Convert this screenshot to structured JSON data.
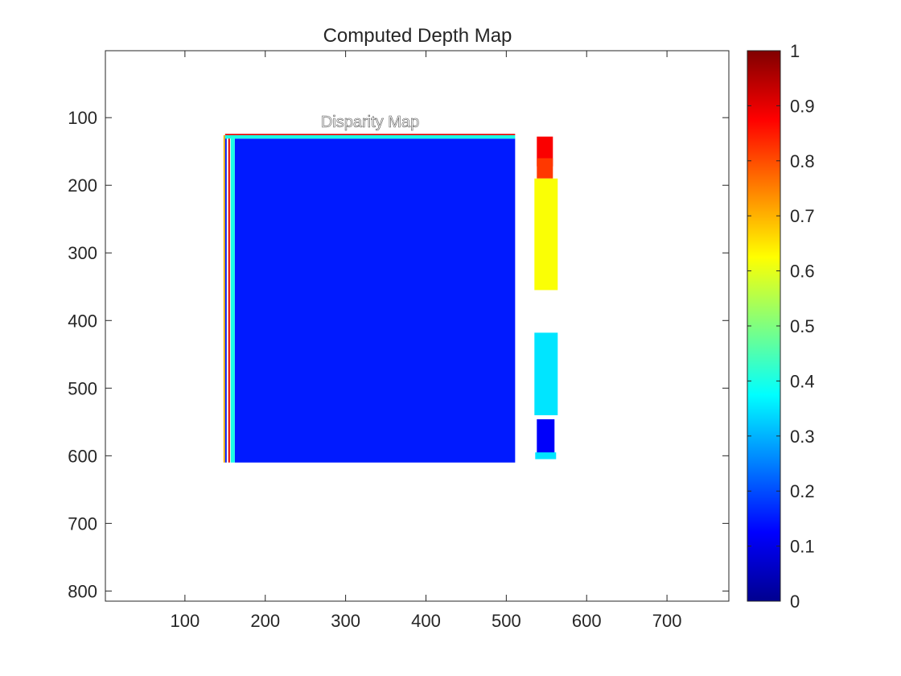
{
  "chart_data": {
    "type": "heatmap",
    "title": "Computed Depth Map",
    "image_text": "Disparity Map",
    "xlim": [
      1,
      777
    ],
    "ylim": [
      1,
      815
    ],
    "x_ticks": [
      100,
      200,
      300,
      400,
      500,
      600,
      700
    ],
    "y_ticks": [
      100,
      200,
      300,
      400,
      500,
      600,
      700,
      800
    ],
    "colorbar": {
      "colormap": "jet",
      "clim": [
        0,
        1
      ],
      "ticks": [
        0,
        0.1,
        0.2,
        0.3,
        0.4,
        0.5,
        0.6,
        0.7,
        0.8,
        0.9,
        1
      ]
    },
    "background_color": "#ffffff",
    "regions": [
      {
        "label": "main-block",
        "x": [
          162,
          511
        ],
        "y": [
          131,
          610
        ],
        "value": 0.15
      },
      {
        "label": "left-edge-stripe",
        "x": [
          148,
          150
        ],
        "y": [
          126,
          610
        ],
        "value": 0.7
      },
      {
        "label": "left-edge-stripe",
        "x": [
          150,
          152
        ],
        "y": [
          126,
          610
        ],
        "value": 0.15
      },
      {
        "label": "left-edge-stripe",
        "x": [
          154,
          156
        ],
        "y": [
          126,
          610
        ],
        "value": 0.9
      },
      {
        "label": "left-edge-stripe",
        "x": [
          157,
          162
        ],
        "y": [
          126,
          610
        ],
        "value": 0.4
      },
      {
        "label": "top-edge-line",
        "x": [
          150,
          511
        ],
        "y": [
          124,
          126
        ],
        "value": 0.9
      },
      {
        "label": "top-edge-line",
        "x": [
          150,
          511
        ],
        "y": [
          126,
          131
        ],
        "value": 0.4
      },
      {
        "label": "right-top-red",
        "x": [
          538,
          558
        ],
        "y": [
          128,
          172
        ],
        "value": 0.88
      },
      {
        "label": "right-top-orange",
        "x": [
          538,
          558
        ],
        "y": [
          160,
          190
        ],
        "value": 0.82
      },
      {
        "label": "right-yellow",
        "x": [
          535,
          564
        ],
        "y": [
          190,
          355
        ],
        "value": 0.62
      },
      {
        "label": "right-cyan",
        "x": [
          535,
          564
        ],
        "y": [
          418,
          540
        ],
        "value": 0.35
      },
      {
        "label": "right-blue",
        "x": [
          538,
          560
        ],
        "y": [
          546,
          598
        ],
        "value": 0.12
      },
      {
        "label": "right-bottom-cyan",
        "x": [
          536,
          562
        ],
        "y": [
          595,
          605
        ],
        "value": 0.35
      }
    ]
  }
}
